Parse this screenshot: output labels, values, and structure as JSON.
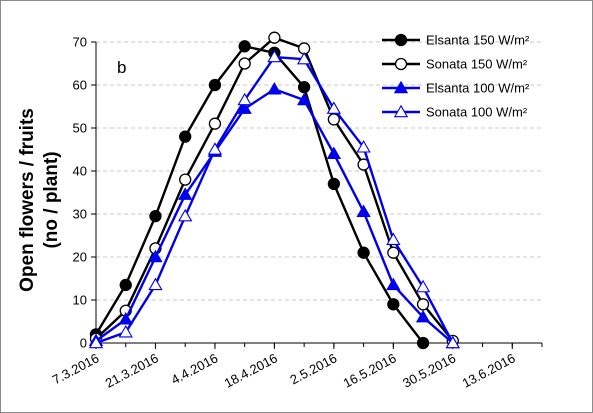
{
  "chart_data": {
    "type": "line",
    "panel_label": "b",
    "ylabel_line1": "Open flowers / fruits",
    "ylabel_line2": "(no / plant)",
    "xlabel": "",
    "ylim": [
      0,
      70
    ],
    "yticks": [
      0,
      10,
      20,
      30,
      40,
      50,
      60,
      70
    ],
    "xtick_labels": [
      "7.3.2016",
      "21.3.2016",
      "4.4.2016",
      "18.4.2016",
      "2.5.2016",
      "16.5.2016",
      "30.5.2016",
      "13.6.2016"
    ],
    "x_start": "2016-03-07",
    "x_end": "2016-06-20",
    "grid": "horizontal dashed",
    "legend_position": "top-right",
    "series": [
      {
        "name": "Elsanta 150 W/m²",
        "color": "#000000",
        "marker": "circle-filled",
        "points": [
          [
            "2016-03-07",
            2
          ],
          [
            "2016-03-14",
            13.5
          ],
          [
            "2016-03-21",
            29.5
          ],
          [
            "2016-03-28",
            48
          ],
          [
            "2016-04-04",
            60
          ],
          [
            "2016-04-11",
            69
          ],
          [
            "2016-04-18",
            67.5
          ],
          [
            "2016-04-25",
            59.5
          ],
          [
            "2016-05-02",
            37
          ],
          [
            "2016-05-09",
            21
          ],
          [
            "2016-05-16",
            9
          ],
          [
            "2016-05-23",
            0
          ]
        ]
      },
      {
        "name": "Sonata 150 W/m²",
        "color": "#000000",
        "marker": "circle-open",
        "points": [
          [
            "2016-03-07",
            1
          ],
          [
            "2016-03-14",
            7.5
          ],
          [
            "2016-03-21",
            22
          ],
          [
            "2016-03-28",
            38
          ],
          [
            "2016-04-04",
            51
          ],
          [
            "2016-04-11",
            65
          ],
          [
            "2016-04-18",
            71
          ],
          [
            "2016-04-25",
            68.5
          ],
          [
            "2016-05-02",
            52
          ],
          [
            "2016-05-09",
            41.5
          ],
          [
            "2016-05-16",
            21
          ],
          [
            "2016-05-23",
            9
          ],
          [
            "2016-05-30",
            0.5
          ]
        ]
      },
      {
        "name": "Elsanta 100 W/m²",
        "color": "#0000ee",
        "marker": "triangle-filled",
        "points": [
          [
            "2016-03-07",
            0.5
          ],
          [
            "2016-03-14",
            5.5
          ],
          [
            "2016-03-21",
            20
          ],
          [
            "2016-03-28",
            34.5
          ],
          [
            "2016-04-04",
            44.5
          ],
          [
            "2016-04-11",
            54.5
          ],
          [
            "2016-04-18",
            59
          ],
          [
            "2016-04-25",
            56.5
          ],
          [
            "2016-05-02",
            44
          ],
          [
            "2016-05-09",
            30.5
          ],
          [
            "2016-05-16",
            13.5
          ],
          [
            "2016-05-23",
            6
          ],
          [
            "2016-05-30",
            0
          ]
        ]
      },
      {
        "name": "Sonata 100 W/m²",
        "color": "#0000ee",
        "marker": "triangle-open",
        "points": [
          [
            "2016-03-07",
            0
          ],
          [
            "2016-03-14",
            2.5
          ],
          [
            "2016-03-21",
            13.5
          ],
          [
            "2016-03-28",
            29.5
          ],
          [
            "2016-04-04",
            45
          ],
          [
            "2016-04-11",
            56.5
          ],
          [
            "2016-04-18",
            66.5
          ],
          [
            "2016-04-25",
            66
          ],
          [
            "2016-05-02",
            54.5
          ],
          [
            "2016-05-09",
            45.5
          ],
          [
            "2016-05-16",
            24
          ],
          [
            "2016-05-23",
            13
          ],
          [
            "2016-05-30",
            0
          ]
        ]
      }
    ]
  }
}
